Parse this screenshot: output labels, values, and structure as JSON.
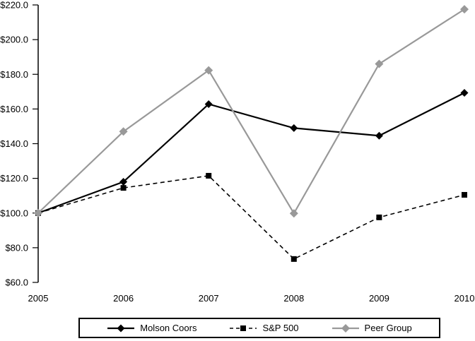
{
  "chart_data": {
    "type": "line",
    "title": "",
    "xlabel": "",
    "ylabel": "",
    "grid": false,
    "background": "#ffffff",
    "axis_color": "#000000",
    "legend_position": "bottom-boxed",
    "x_labels": [
      "2005",
      "2006",
      "2007",
      "2008",
      "2009",
      "2010"
    ],
    "ylim": [
      60,
      220
    ],
    "y_ticks": [
      {
        "value": 220,
        "label": "$220.0"
      },
      {
        "value": 200,
        "label": "$200.0"
      },
      {
        "value": 180,
        "label": "$180.0"
      },
      {
        "value": 160,
        "label": "$160.0"
      },
      {
        "value": 140,
        "label": "$140.0"
      },
      {
        "value": 120,
        "label": "$120.0"
      },
      {
        "value": 100,
        "label": "$100.0"
      },
      {
        "value": 80,
        "label": "$80.0"
      },
      {
        "value": 60,
        "label": "$60.0"
      }
    ],
    "series": [
      {
        "name": "Molson Coors",
        "values": [
          100.0,
          118.0,
          162.8,
          149.0,
          144.6,
          169.3
        ],
        "color": "#000000",
        "marker": "diamond",
        "marker_size": 5.5,
        "line_style": "solid",
        "line_width": 2.2,
        "dash": ""
      },
      {
        "name": "S&P 500",
        "values": [
          100.0,
          114.5,
          121.5,
          73.5,
          97.5,
          110.5
        ],
        "color": "#000000",
        "marker": "square",
        "marker_size": 4,
        "line_style": "dashed",
        "line_width": 1.6,
        "dash": "6,4.5"
      },
      {
        "name": "Peer Group",
        "values": [
          100.0,
          147.0,
          182.3,
          99.8,
          186.0,
          217.5
        ],
        "color": "#999999",
        "marker": "diamond",
        "marker_size": 6,
        "line_style": "solid",
        "line_width": 2.2,
        "dash": ""
      }
    ]
  },
  "colors": {
    "background": "#ffffff",
    "text": "#000000",
    "axis": "#000000",
    "peer_gray": "#999999"
  }
}
